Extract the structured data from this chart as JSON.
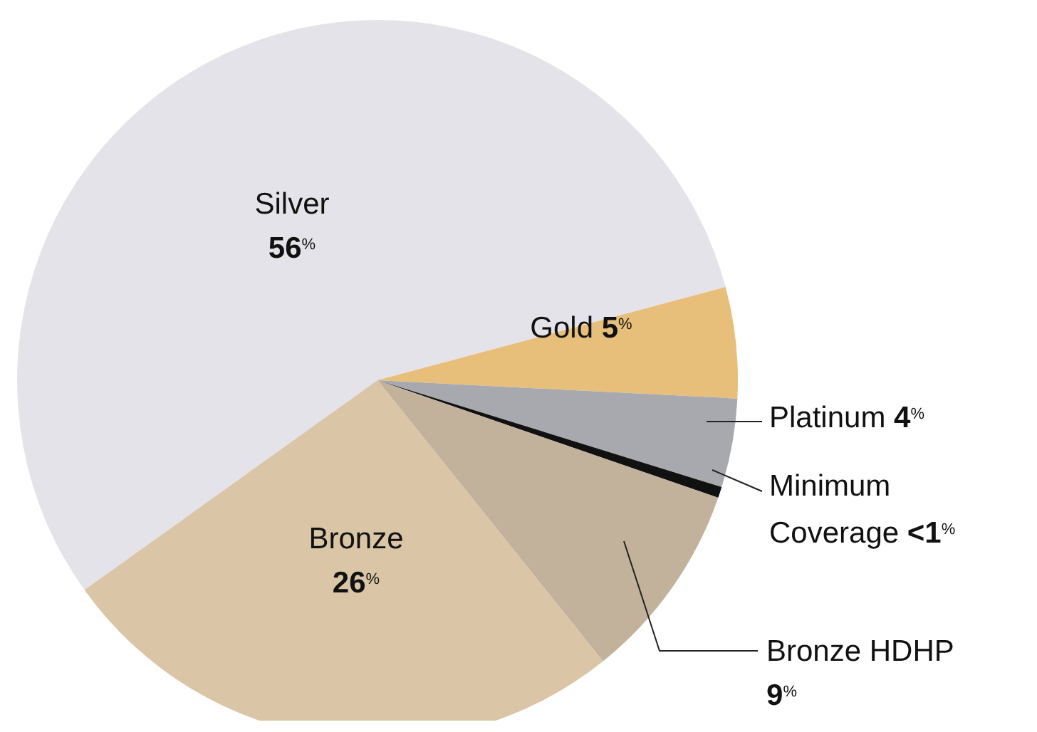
{
  "chart_data": {
    "type": "pie",
    "categories": [
      "Silver",
      "Gold",
      "Platinum",
      "Minimum Coverage",
      "Bronze HDHP",
      "Bronze"
    ],
    "values": [
      56,
      5,
      4,
      0.5,
      9,
      26
    ],
    "value_labels": [
      "56$^{%}$",
      "5$^{%}$",
      "4$^{%}$",
      "<1$^{%}$",
      "9$^{%}$",
      "26$^{%}$"
    ],
    "colors": [
      "#e3e3e9",
      "#e8bf7a",
      "#a8a9ae",
      "#111111",
      "#c3b29b",
      "#dac6a6"
    ]
  }
}
